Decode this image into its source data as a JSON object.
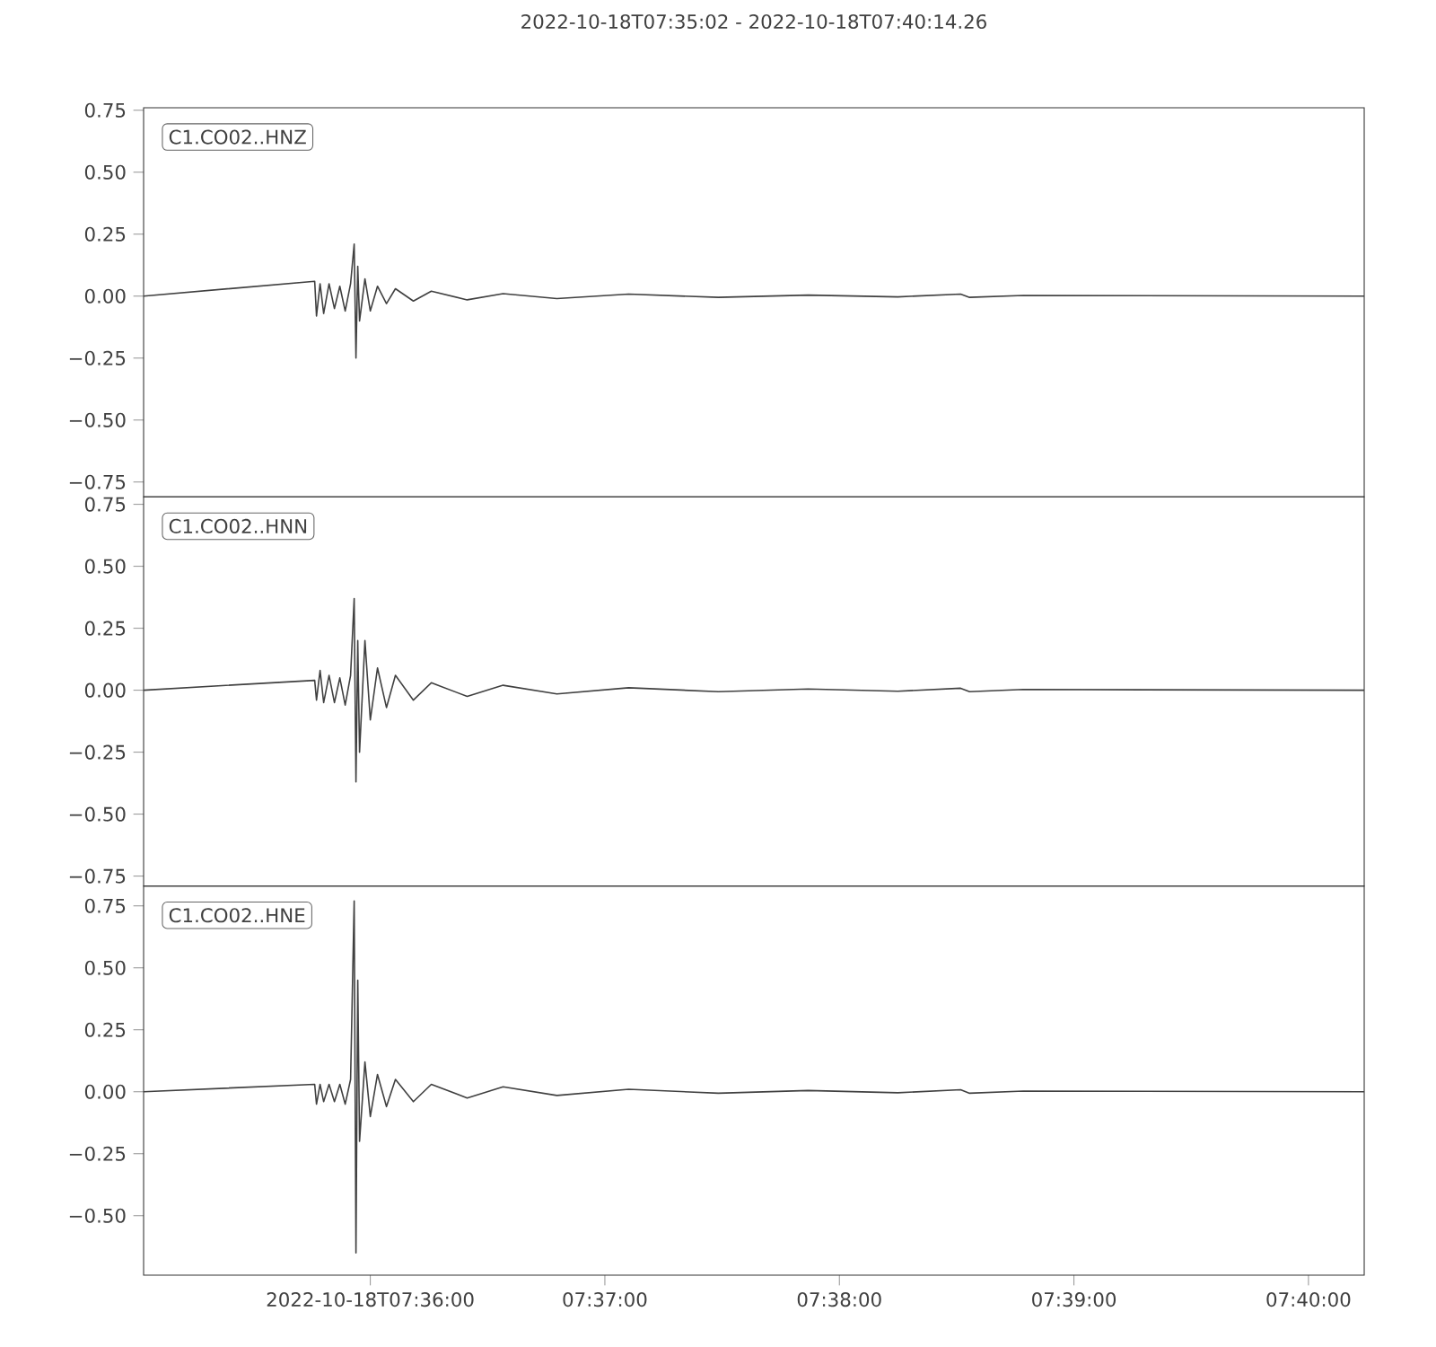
{
  "chart_data": [
    {
      "type": "line",
      "title": "2022-10-18T07:35:02  -  2022-10-18T07:40:14.26",
      "annotations": [
        "C1.CO02..HNZ"
      ],
      "color": "#404040",
      "tick_labels": "y",
      "x": [
        7.583889,
        7.596047,
        7.596175,
        7.59643,
        7.596685,
        7.597068,
        7.59745,
        7.597833,
        7.598215,
        7.598598,
        7.598853,
        7.59898,
        7.599108,
        7.599235,
        7.599618,
        7.6,
        7.60051,
        7.601148,
        7.601785,
        7.60306,
        7.604335,
        7.606885,
        7.609435,
        7.61326,
        7.61836,
        7.624735,
        7.63111,
        7.637485,
        7.641948,
        7.642585,
        7.64641,
        7.670628
      ],
      "values": [
        0,
        0.06,
        -0.08,
        0.05,
        -0.07,
        0.05,
        -0.05,
        0.04,
        -0.06,
        0.05,
        0.21,
        -0.25,
        0.12,
        -0.1,
        0.07,
        -0.06,
        0.04,
        -0.03,
        0.03,
        -0.02,
        0.02,
        -0.015,
        0.01,
        -0.01,
        0.008,
        -0.005,
        0.004,
        -0.003,
        0.008,
        -0.005,
        0.003,
        0
      ],
      "xlim": [
        7.583889,
        7.670628
      ],
      "ylim": [
        -0.81,
        0.76
      ],
      "yticks": [
        {
          "value": -0.75,
          "label": "−0.75"
        },
        {
          "value": -0.5,
          "label": "−0.50"
        },
        {
          "value": -0.25,
          "label": "−0.25"
        },
        {
          "value": 0,
          "label": "0.00"
        },
        {
          "value": 0.25,
          "label": "0.25"
        },
        {
          "value": 0.5,
          "label": "0.50"
        },
        {
          "value": 0.75,
          "label": "0.75"
        }
      ]
    },
    {
      "type": "line",
      "annotations": [
        "C1.CO02..HNN"
      ],
      "color": "#404040",
      "tick_labels": "y",
      "x": [
        7.583889,
        7.596047,
        7.596175,
        7.59643,
        7.596685,
        7.597068,
        7.59745,
        7.597833,
        7.598215,
        7.598598,
        7.598853,
        7.59898,
        7.599108,
        7.599235,
        7.599618,
        7.6,
        7.60051,
        7.601148,
        7.601785,
        7.60306,
        7.604335,
        7.606885,
        7.609435,
        7.61326,
        7.61836,
        7.624735,
        7.63111,
        7.637485,
        7.641948,
        7.642585,
        7.64641,
        7.670628
      ],
      "values": [
        0,
        0.04,
        -0.04,
        0.08,
        -0.05,
        0.06,
        -0.05,
        0.05,
        -0.06,
        0.06,
        0.37,
        -0.37,
        0.2,
        -0.25,
        0.2,
        -0.12,
        0.09,
        -0.07,
        0.06,
        -0.04,
        0.03,
        -0.025,
        0.02,
        -0.015,
        0.01,
        -0.006,
        0.005,
        -0.004,
        0.008,
        -0.006,
        0.003,
        0
      ],
      "xlim": [
        7.583889,
        7.670628
      ],
      "ylim": [
        -0.79,
        0.78
      ],
      "yticks": [
        {
          "value": -0.75,
          "label": "−0.75"
        },
        {
          "value": -0.5,
          "label": "−0.50"
        },
        {
          "value": -0.25,
          "label": "−0.25"
        },
        {
          "value": 0,
          "label": "0.00"
        },
        {
          "value": 0.25,
          "label": "0.25"
        },
        {
          "value": 0.5,
          "label": "0.50"
        },
        {
          "value": 0.75,
          "label": "0.75"
        }
      ]
    },
    {
      "type": "line",
      "annotations": [
        "C1.CO02..HNE"
      ],
      "color": "#404040",
      "x": [
        7.583889,
        7.596047,
        7.596175,
        7.59643,
        7.596685,
        7.597068,
        7.59745,
        7.597833,
        7.598215,
        7.598598,
        7.598853,
        7.59898,
        7.599108,
        7.599235,
        7.599618,
        7.6,
        7.60051,
        7.601148,
        7.601785,
        7.60306,
        7.604335,
        7.606885,
        7.609435,
        7.61326,
        7.61836,
        7.624735,
        7.63111,
        7.637485,
        7.641948,
        7.642585,
        7.64641,
        7.670628
      ],
      "values": [
        0,
        0.03,
        -0.05,
        0.03,
        -0.04,
        0.03,
        -0.04,
        0.03,
        -0.05,
        0.05,
        0.77,
        -0.65,
        0.45,
        -0.2,
        0.12,
        -0.1,
        0.07,
        -0.06,
        0.05,
        -0.04,
        0.03,
        -0.025,
        0.02,
        -0.015,
        0.01,
        -0.006,
        0.005,
        -0.004,
        0.008,
        -0.006,
        0.003,
        0
      ],
      "xlim": [
        7.583889,
        7.670628
      ],
      "xticks": [
        {
          "value": 7.6,
          "label": "2022-10-18T07:36:00"
        },
        {
          "value": 7.616667,
          "label": "07:37:00"
        },
        {
          "value": 7.633333,
          "label": "07:38:00"
        },
        {
          "value": 7.65,
          "label": "07:39:00"
        },
        {
          "value": 7.666667,
          "label": "07:40:00"
        }
      ],
      "ylim": [
        -0.74,
        0.83
      ],
      "yticks": [
        {
          "value": -0.5,
          "label": "−0.50"
        },
        {
          "value": -0.25,
          "label": "−0.25"
        },
        {
          "value": 0,
          "label": "0.00"
        },
        {
          "value": 0.25,
          "label": "0.25"
        },
        {
          "value": 0.5,
          "label": "0.50"
        },
        {
          "value": 0.75,
          "label": "0.75"
        }
      ]
    }
  ]
}
